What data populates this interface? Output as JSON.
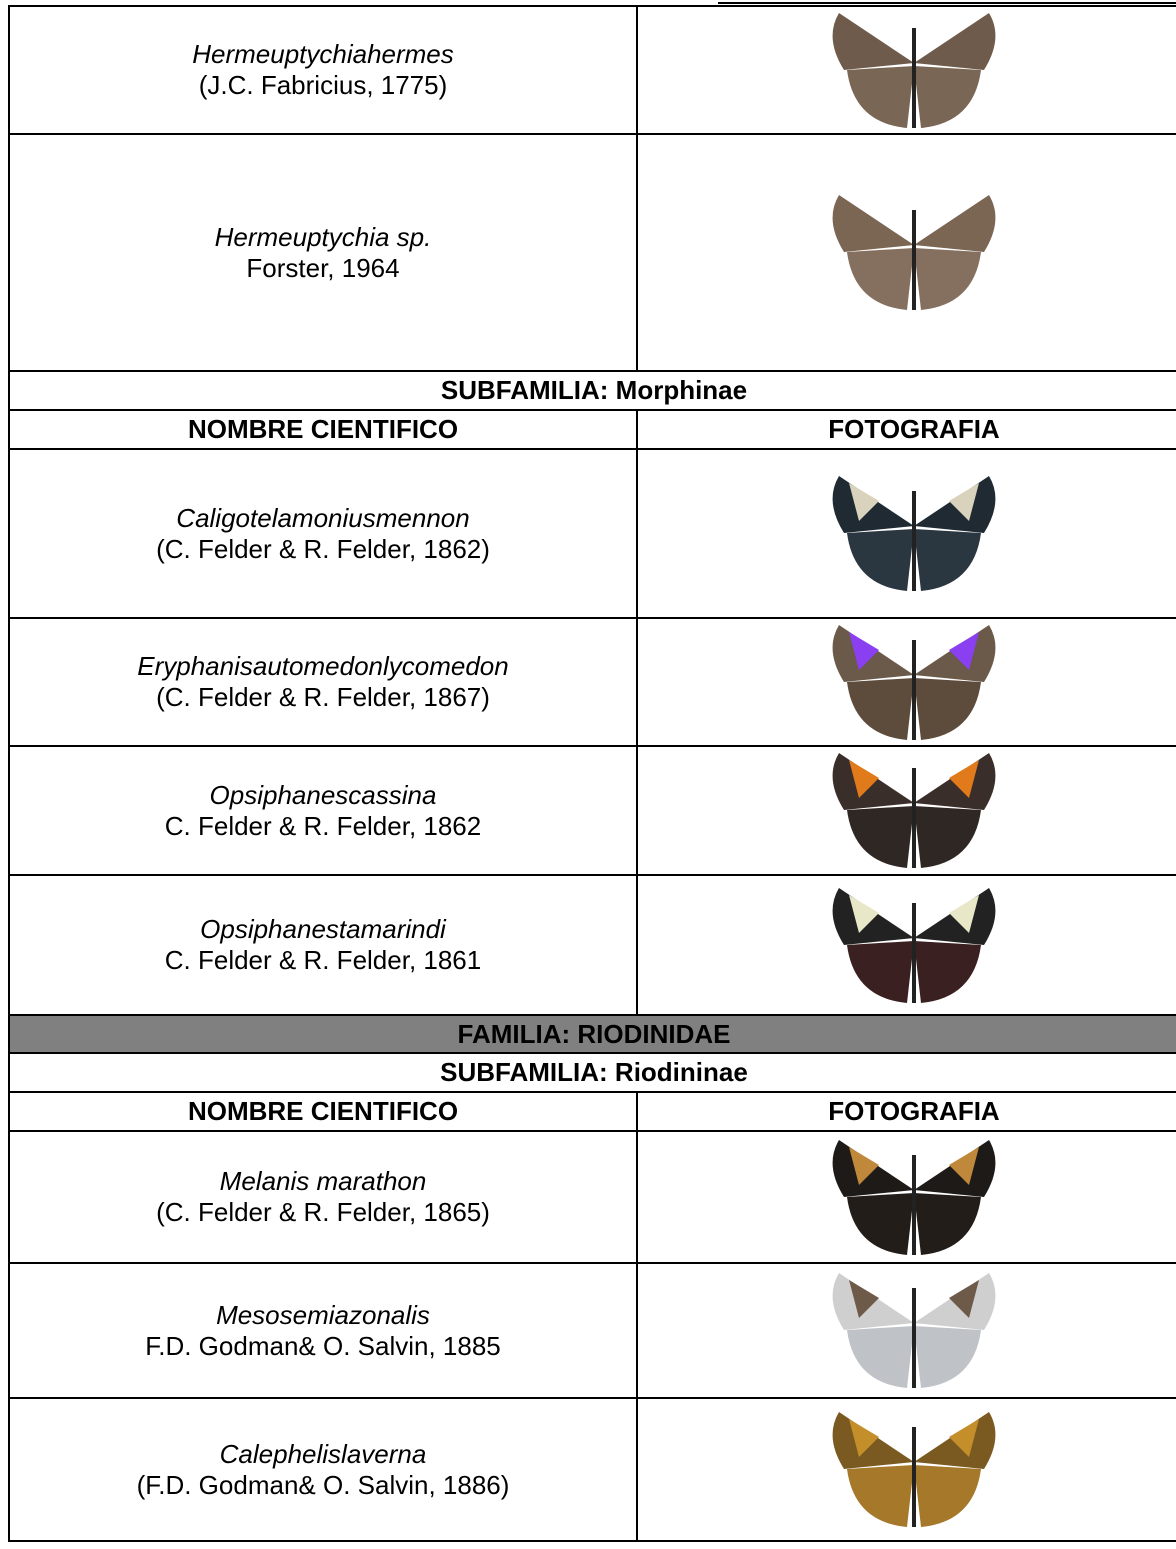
{
  "table": {
    "blocks": [
      {
        "species": [
          {
            "name": "Hermeuptychiahermes",
            "author": "(J.C. Fabricius, 1775)"
          },
          {
            "name": "Hermeuptychia sp.",
            "author": "Forster, 1964"
          }
        ]
      },
      {
        "subfamily": "SUBFAMILIA: Morphinae",
        "header": [
          "NOMBRE CIENTIFICO",
          "FOTOGRAFIA"
        ],
        "species": [
          {
            "name": "Caligotelamoniusmennon",
            "author": "(C. Felder & R. Felder, 1862)"
          },
          {
            "name": "Eryphanisautomedonlycomedon",
            "author": "(C. Felder & R. Felder, 1867)"
          },
          {
            "name": "Opsiphanescassina",
            "author": "C. Felder & R. Felder, 1862"
          },
          {
            "name": "Opsiphanestamarindi",
            "author": "C. Felder & R. Felder, 1861"
          }
        ]
      },
      {
        "family": "FAMILIA: RIODINIDAE",
        "subfamily": "SUBFAMILIA: Riodininae",
        "header": [
          "NOMBRE CIENTIFICO",
          "FOTOGRAFIA"
        ],
        "species": [
          {
            "name": "Melanis marathon",
            "author": "(C. Felder & R. Felder, 1865)"
          },
          {
            "name": "Mesosemiazonalis",
            "author": "F.D. Godman& O. Salvin, 1885"
          },
          {
            "name": "Calephelislaverna",
            "author": "(F.D. Godman& O. Salvin, 1886)"
          }
        ]
      }
    ]
  }
}
